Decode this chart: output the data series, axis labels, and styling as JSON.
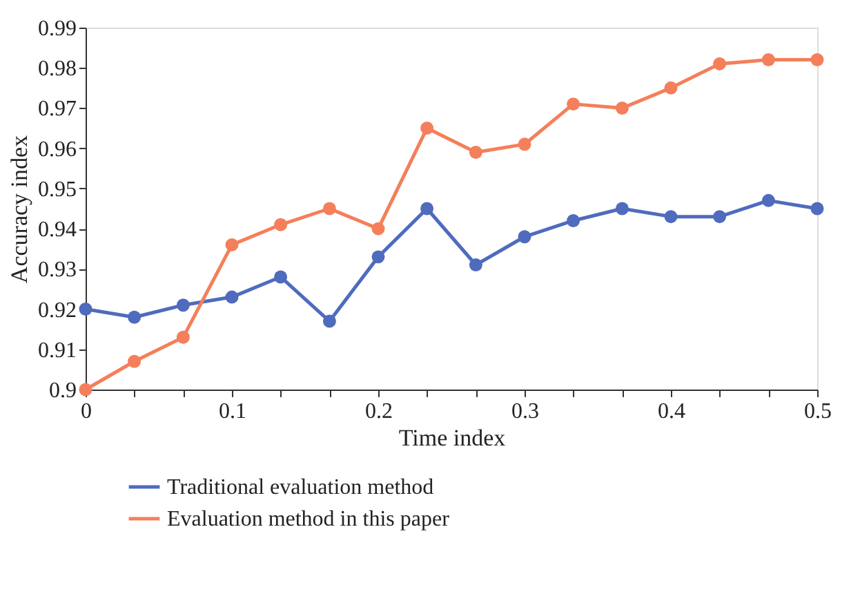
{
  "chart_data": {
    "type": "line",
    "xlabel": "Time index",
    "ylabel": "Accuracy index",
    "x": [
      0,
      0.0333,
      0.0667,
      0.1,
      0.1333,
      0.1667,
      0.2,
      0.2333,
      0.2667,
      0.3,
      0.3333,
      0.3667,
      0.4,
      0.4333,
      0.4667,
      0.5
    ],
    "series": [
      {
        "name": "Traditional evaluation method",
        "color": "#4f6bbd",
        "values": [
          0.92,
          0.918,
          0.921,
          0.923,
          0.928,
          0.917,
          0.933,
          0.945,
          0.931,
          0.938,
          0.942,
          0.945,
          0.943,
          0.943,
          0.947,
          0.945
        ]
      },
      {
        "name": "Evaluation method in this paper",
        "color": "#f47f5a",
        "values": [
          0.9,
          0.907,
          0.913,
          0.936,
          0.941,
          0.945,
          0.94,
          0.965,
          0.959,
          0.961,
          0.971,
          0.97,
          0.975,
          0.981,
          0.982,
          0.982
        ]
      }
    ],
    "xlim": [
      0,
      0.5
    ],
    "xticks": [
      0,
      {
        "value": 0.0333,
        "label": null
      },
      {
        "value": 0.0667,
        "label": null
      },
      0.1,
      {
        "value": 0.1333,
        "label": null
      },
      {
        "value": 0.1667,
        "label": null
      },
      0.2,
      {
        "value": 0.2333,
        "label": null
      },
      {
        "value": 0.2667,
        "label": null
      },
      0.3,
      {
        "value": 0.3333,
        "label": null
      },
      {
        "value": 0.3667,
        "label": null
      },
      0.4,
      {
        "value": 0.4333,
        "label": null
      },
      {
        "value": 0.4667,
        "label": null
      },
      0.5
    ],
    "ylim": [
      0.9,
      0.99
    ],
    "yticks": [
      0.9,
      0.91,
      0.92,
      0.93,
      0.94,
      0.95,
      0.96,
      0.97,
      0.98,
      0.99
    ],
    "grid": false,
    "legend": "bottom left",
    "marker": "circle",
    "line_style": "solid"
  }
}
